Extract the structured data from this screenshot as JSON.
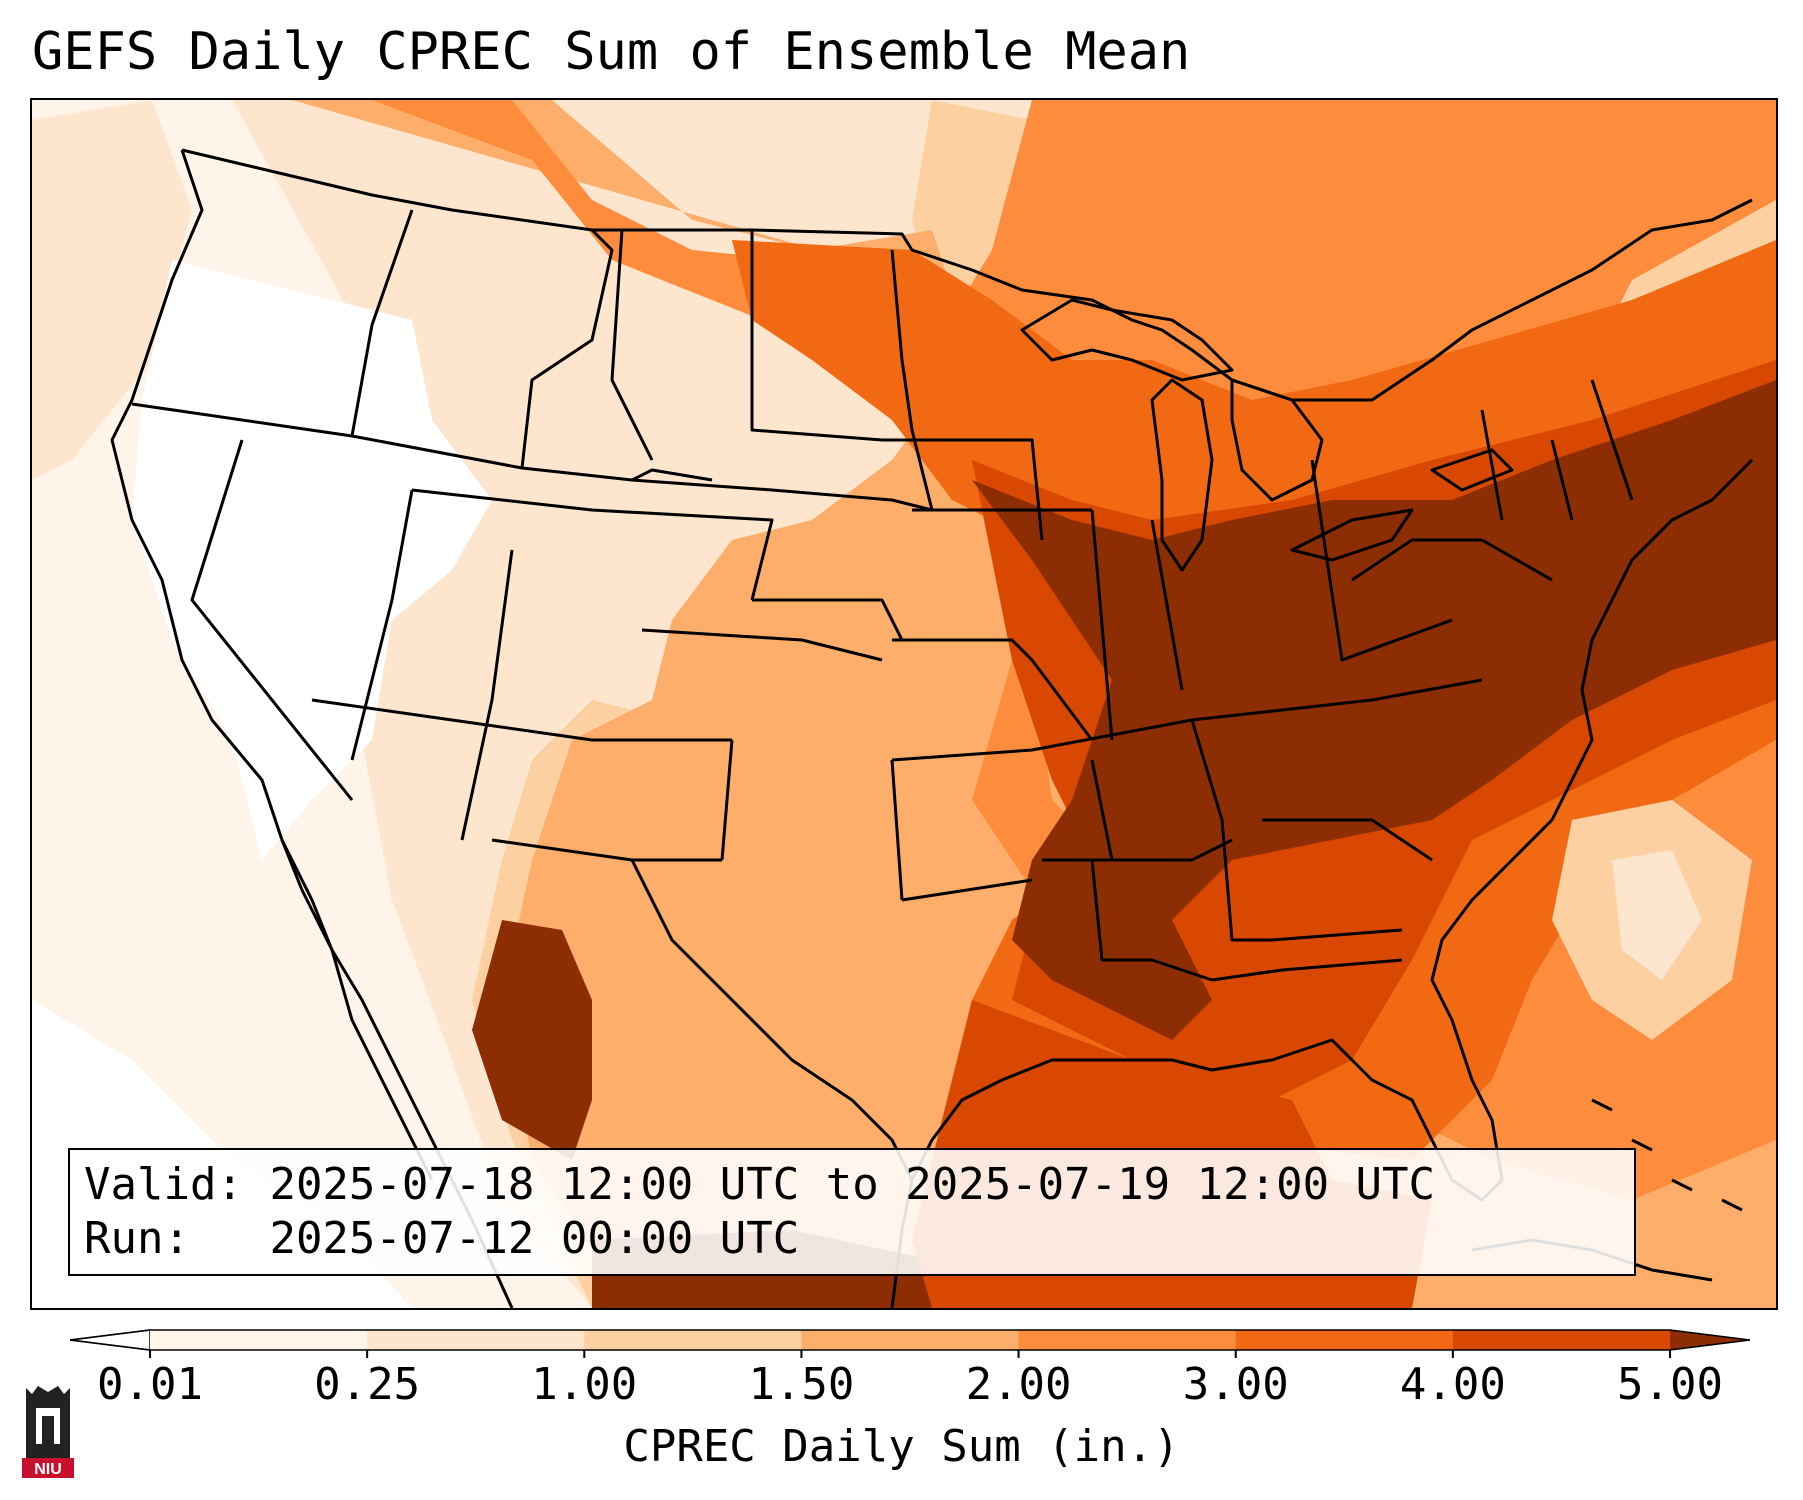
{
  "title": "GEFS Daily CPREC Sum of Ensemble Mean",
  "info": {
    "valid_label": "Valid:",
    "valid_value": "2025-07-18 12:00 UTC to 2025-07-19 12:00 UTC",
    "run_label": "Run:",
    "run_value": "2025-07-12 00:00 UTC"
  },
  "colorbar": {
    "label": "CPREC Daily Sum (in.)",
    "ticks": [
      "0.01",
      "0.25",
      "1.00",
      "1.50",
      "2.00",
      "3.00",
      "4.00",
      "5.00"
    ],
    "colors": [
      "#fff5eb",
      "#fee6ce",
      "#fdd0a2",
      "#fdae6b",
      "#fd8d3c",
      "#f16913",
      "#d94801",
      "#8c2d04"
    ],
    "extend": "both"
  },
  "logo": {
    "text": "NIU",
    "colors": {
      "red": "#c8102e",
      "dark": "#222222"
    }
  },
  "map": {
    "region": "Contiguous United States and surrounding areas",
    "colors": {
      "border": "#000000",
      "water_background": "#fff4ea"
    },
    "precip_regions": [
      {
        "name": "Southeast and Ohio Valley",
        "category": "5.00"
      },
      {
        "name": "Mid-Atlantic coast and offshore",
        "category": "5.00"
      },
      {
        "name": "Western Mexico (Sierra Madre)",
        "category": "5.00"
      },
      {
        "name": "Northern Gulf of Mexico",
        "category": "5.00"
      },
      {
        "name": "Upper Midwest and Great Lakes",
        "category": "3.00"
      },
      {
        "name": "Northern and Central Plains",
        "category": "2.00"
      },
      {
        "name": "Southern Rockies",
        "category": "2.00"
      },
      {
        "name": "Pacific Northwest and Great Basin",
        "category": "0.01"
      }
    ]
  }
}
